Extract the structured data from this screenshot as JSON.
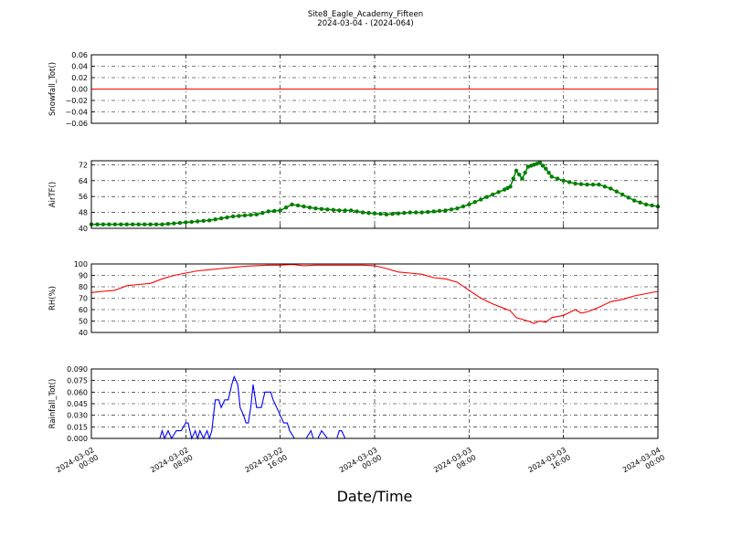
{
  "chart_data": {
    "type": "line",
    "title": "Site8_Eagle_Academy_Fifteen",
    "subtitle": "2024-03-04 - (2024-064)",
    "xlabel": "Date/Time",
    "x_ticks": [
      "2024-03-02\n00:00",
      "2024-03-02\n08:00",
      "2024-03-02\n16:00",
      "2024-03-03\n00:00",
      "2024-03-03\n08:00",
      "2024-03-03\n16:00",
      "2024-03-04\n00:00"
    ],
    "x_range_hours": [
      0,
      48
    ],
    "grid": true,
    "panels": [
      {
        "ylabel": "Snowfall_Tot()",
        "ylim": [
          -0.06,
          0.06
        ],
        "yticks": [
          "0.06",
          "0.04",
          "0.02",
          "0.00",
          "−0.02",
          "−0.04",
          "−0.06"
        ],
        "ytick_values": [
          0.06,
          0.04,
          0.02,
          0.0,
          -0.02,
          -0.04,
          -0.06
        ],
        "color": "#ff0000",
        "marker": false,
        "series": [
          {
            "x": [
              0,
              48
            ],
            "y": [
              0,
              0
            ]
          }
        ]
      },
      {
        "ylabel": "AirTF()",
        "ylim": [
          40,
          74
        ],
        "yticks": [
          "72",
          "64",
          "56",
          "48",
          "40"
        ],
        "ytick_values": [
          72,
          64,
          56,
          48,
          40
        ],
        "color": "#008000",
        "marker": true,
        "series": [
          {
            "x": [
              0,
              1,
              2,
              3,
              4,
              5,
              6,
              7,
              8,
              9,
              10,
              11,
              12,
              13,
              14,
              15,
              16,
              17,
              18,
              19,
              20,
              21,
              22,
              23,
              24,
              25,
              26,
              27,
              28,
              29,
              30,
              31,
              32,
              33,
              34,
              35,
              35.5,
              36,
              36.5,
              37,
              37.5,
              38,
              38.5,
              39,
              40,
              41,
              42,
              43,
              44,
              45,
              46,
              47,
              48
            ],
            "y": [
              42,
              42,
              42,
              42,
              42,
              42,
              42,
              42.5,
              43,
              43.5,
              44,
              45,
              46,
              46.5,
              47,
              48.5,
              49,
              52,
              51,
              50,
              49.5,
              49,
              49,
              48,
              47.5,
              47,
              47.5,
              48,
              48,
              48.5,
              49,
              50,
              52,
              54.5,
              57,
              59.5,
              61,
              69,
              65,
              71,
              72,
              73,
              70,
              66,
              64,
              62.5,
              62,
              62,
              60,
              57,
              54,
              52,
              51
            ]
          }
        ]
      },
      {
        "ylabel": "RH(%)",
        "ylim": [
          40,
          100
        ],
        "yticks": [
          "100",
          "90",
          "80",
          "70",
          "60",
          "50",
          "40"
        ],
        "ytick_values": [
          100,
          90,
          80,
          70,
          60,
          50,
          40
        ],
        "color": "#ff0000",
        "marker": false,
        "series": [
          {
            "x": [
              0,
              1,
              2,
              3,
              4,
              5,
              6,
              7,
              8,
              9,
              10,
              11,
              12,
              13,
              14,
              15,
              16,
              17,
              18,
              19,
              20,
              21,
              22,
              23,
              24,
              25,
              26,
              27,
              28,
              29,
              30,
              31,
              32,
              33,
              34,
              35,
              35.5,
              36,
              37,
              37.5,
              38,
              38.5,
              39,
              40,
              41,
              41.5,
              42,
              43,
              44,
              45,
              46,
              47,
              48
            ],
            "y": [
              75,
              76,
              77,
              81,
              82,
              83,
              87,
              90,
              92,
              94,
              95,
              96,
              97,
              98,
              98.5,
              99,
              99,
              99.5,
              98.5,
              99,
              99,
              99,
              99,
              99,
              98.5,
              96,
              93,
              92,
              91,
              88,
              87,
              84,
              77,
              70,
              65,
              61,
              59,
              53,
              50,
              48,
              50,
              49,
              53,
              55,
              60,
              57,
              58,
              62,
              67,
              69,
              72,
              74,
              76
            ]
          }
        ]
      },
      {
        "ylabel": "Rainfall_Tot()",
        "ylim": [
          0,
          0.09
        ],
        "yticks": [
          "0.090",
          "0.075",
          "0.060",
          "0.045",
          "0.030",
          "0.015",
          "0.000"
        ],
        "ytick_values": [
          0.09,
          0.075,
          0.06,
          0.045,
          0.03,
          0.015,
          0.0
        ],
        "color": "#0000ff",
        "marker": false,
        "series": [
          {
            "x": [
              0,
              5.8,
              6.0,
              6.2,
              6.5,
              6.8,
              7.2,
              7.6,
              8.0,
              8.2,
              8.5,
              8.8,
              9.0,
              9.2,
              9.5,
              9.8,
              10.0,
              10.2,
              10.5,
              10.8,
              11.0,
              11.3,
              11.6,
              11.9,
              12.1,
              12.4,
              12.6,
              12.9,
              13.1,
              13.3,
              13.5,
              13.7,
              14.0,
              14.2,
              14.4,
              14.7,
              15.0,
              15.2,
              15.4,
              15.7,
              16.0,
              16.3,
              16.6,
              16.8,
              17.2,
              17.6,
              18.0,
              18.2,
              18.6,
              18.8,
              19.0,
              19.2,
              19.5,
              20.0,
              20.6,
              20.8,
              21.0,
              21.2,
              21.5,
              48
            ],
            "y": [
              0,
              0,
              0.01,
              0,
              0.01,
              0,
              0.01,
              0.01,
              0.02,
              0.02,
              0,
              0.01,
              0,
              0.01,
              0,
              0.01,
              0,
              0.01,
              0.05,
              0.05,
              0.04,
              0.05,
              0.05,
              0.07,
              0.08,
              0.07,
              0.04,
              0.03,
              0.02,
              0.02,
              0.04,
              0.07,
              0.04,
              0.04,
              0.04,
              0.06,
              0.06,
              0.06,
              0.05,
              0.04,
              0.03,
              0.02,
              0.02,
              0.01,
              0,
              0,
              0,
              0,
              0.01,
              0,
              0,
              0,
              0.01,
              0,
              0,
              0,
              0.01,
              0.01,
              0,
              0
            ]
          }
        ]
      }
    ]
  }
}
